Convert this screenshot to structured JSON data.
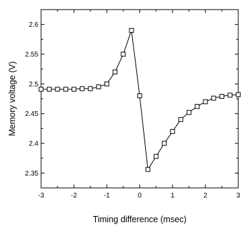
{
  "chart_data": {
    "type": "line",
    "title": "",
    "xlabel": "Timing difference (msec)",
    "ylabel": "Memory voltage (V)",
    "xlim": [
      -3,
      3
    ],
    "ylim": [
      2.325,
      2.625
    ],
    "x_ticks": [
      -3,
      -2,
      -1,
      0,
      1,
      2,
      3
    ],
    "x_tick_labels": [
      "-3",
      "-2",
      "-1",
      "0",
      "1",
      "2",
      "3"
    ],
    "y_ticks": [
      2.35,
      2.4,
      2.45,
      2.5,
      2.55,
      2.6
    ],
    "y_tick_labels": [
      "2.35",
      "2.4",
      "2.45",
      "2.5",
      "2.55",
      "2.6"
    ],
    "grid": false,
    "legend": "none",
    "marker": "open-square",
    "line_color": "#000000",
    "series": [
      {
        "x": [
          -3.0,
          -2.75,
          -2.5,
          -2.25,
          -2.0,
          -1.75,
          -1.5,
          -1.25,
          -1.0,
          -0.75,
          -0.5,
          -0.25,
          0.0,
          0.25,
          0.5,
          0.75,
          1.0,
          1.25,
          1.5,
          1.75,
          2.0,
          2.25,
          2.5,
          2.75,
          3.0
        ],
        "y": [
          2.491,
          2.491,
          2.491,
          2.491,
          2.491,
          2.492,
          2.492,
          2.495,
          2.5,
          2.52,
          2.55,
          2.59,
          2.48,
          2.356,
          2.378,
          2.4,
          2.42,
          2.44,
          2.452,
          2.462,
          2.47,
          2.476,
          2.479,
          2.481,
          2.482
        ]
      }
    ]
  }
}
